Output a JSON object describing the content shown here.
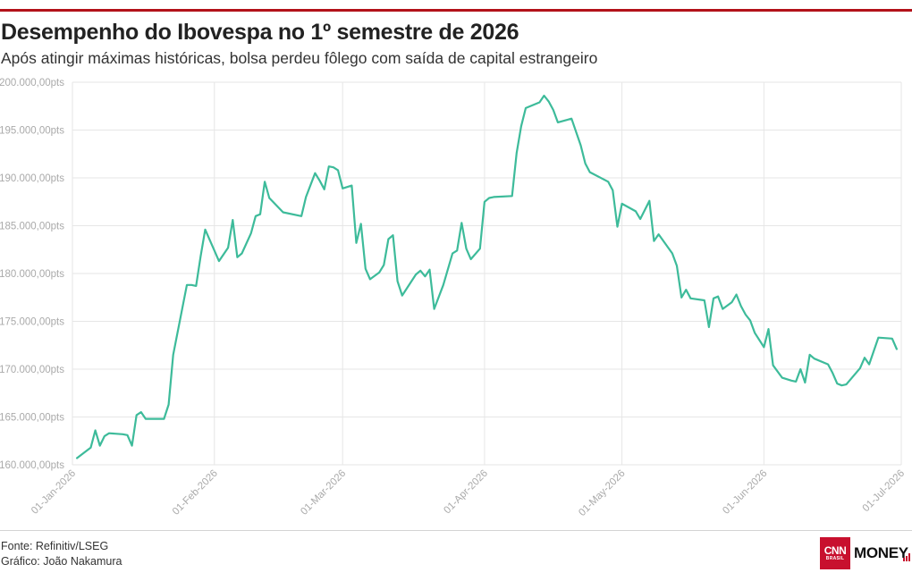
{
  "header": {
    "title": "Desempenho do Ibovespa no 1º semestre de 2026",
    "subtitle": "Após atingir máximas históricas, bolsa perdeu fôlego com saída de capital estrangeiro"
  },
  "footer": {
    "source": "Fonte: Refinitiv/LSEG",
    "credit": "Gráfico: João Nakamura"
  },
  "logo": {
    "mark": "CNN",
    "country": "BRASIL",
    "word": "MONEY"
  },
  "colors": {
    "accent": "#b3121a",
    "line": "#3dbb9a",
    "grid": "#e6e6e6",
    "tick_label": "#aaaaaa",
    "logo_red": "#c8102e"
  },
  "chart_data": {
    "type": "line",
    "title": "Desempenho do Ibovespa no 1º semestre de 2026",
    "xlabel": "",
    "ylabel": "",
    "ylim": [
      160000,
      200000
    ],
    "xlim": [
      "2026-01-01",
      "2026-07-01"
    ],
    "grid": true,
    "legend": "none",
    "y_tick_values": [
      160000,
      165000,
      170000,
      175000,
      180000,
      185000,
      190000,
      195000,
      200000
    ],
    "y_tick_labels": [
      "160.000,00pts",
      "165.000,00pts",
      "170.000,00pts",
      "175.000,00pts",
      "180.000,00pts",
      "185.000,00pts",
      "190.000,00pts",
      "195.000,00pts",
      "200.000,00pts"
    ],
    "x_tick_values": [
      "2026-01-01",
      "2026-02-01",
      "2026-03-01",
      "2026-04-01",
      "2026-05-01",
      "2026-06-01",
      "2026-07-01"
    ],
    "x_tick_labels": [
      "01-Jan-2026",
      "01-Feb-2026",
      "01-Mar-2026",
      "01-Apr-2026",
      "01-May-2026",
      "01-Jun-2026",
      "01-Jul-2026"
    ],
    "series": [
      {
        "points": [
          [
            "2026-01-02",
            160700
          ],
          [
            "2026-01-05",
            161800
          ],
          [
            "2026-01-06",
            163600
          ],
          [
            "2026-01-07",
            162000
          ],
          [
            "2026-01-08",
            163000
          ],
          [
            "2026-01-09",
            163300
          ],
          [
            "2026-01-12",
            163200
          ],
          [
            "2026-01-13",
            163100
          ],
          [
            "2026-01-14",
            162000
          ],
          [
            "2026-01-15",
            165200
          ],
          [
            "2026-01-16",
            165500
          ],
          [
            "2026-01-17",
            164800
          ],
          [
            "2026-01-20",
            164800
          ],
          [
            "2026-01-21",
            164800
          ],
          [
            "2026-01-22",
            166300
          ],
          [
            "2026-01-23",
            171500
          ],
          [
            "2026-01-26",
            178800
          ],
          [
            "2026-01-27",
            178800
          ],
          [
            "2026-01-28",
            178700
          ],
          [
            "2026-01-29",
            181800
          ],
          [
            "2026-01-30",
            184600
          ],
          [
            "2026-02-02",
            181300
          ],
          [
            "2026-02-04",
            182700
          ],
          [
            "2026-02-05",
            185600
          ],
          [
            "2026-02-06",
            181700
          ],
          [
            "2026-02-07",
            182100
          ],
          [
            "2026-02-09",
            184200
          ],
          [
            "2026-02-10",
            186000
          ],
          [
            "2026-02-11",
            186200
          ],
          [
            "2026-02-12",
            189600
          ],
          [
            "2026-02-13",
            187900
          ],
          [
            "2026-02-16",
            186400
          ],
          [
            "2026-02-20",
            186000
          ],
          [
            "2026-02-21",
            188000
          ],
          [
            "2026-02-23",
            190500
          ],
          [
            "2026-02-24",
            189700
          ],
          [
            "2026-02-25",
            188800
          ],
          [
            "2026-02-26",
            191200
          ],
          [
            "2026-02-27",
            191100
          ],
          [
            "2026-02-28",
            190800
          ],
          [
            "2026-03-01",
            188900
          ],
          [
            "2026-03-03",
            189200
          ],
          [
            "2026-03-04",
            183200
          ],
          [
            "2026-03-05",
            185200
          ],
          [
            "2026-03-06",
            180500
          ],
          [
            "2026-03-07",
            179400
          ],
          [
            "2026-03-09",
            180100
          ],
          [
            "2026-03-10",
            180900
          ],
          [
            "2026-03-11",
            183600
          ],
          [
            "2026-03-12",
            184000
          ],
          [
            "2026-03-13",
            179200
          ],
          [
            "2026-03-14",
            177700
          ],
          [
            "2026-03-17",
            179900
          ],
          [
            "2026-03-18",
            180300
          ],
          [
            "2026-03-19",
            179700
          ],
          [
            "2026-03-20",
            180400
          ],
          [
            "2026-03-21",
            176300
          ],
          [
            "2026-03-23",
            178800
          ],
          [
            "2026-03-25",
            182100
          ],
          [
            "2026-03-26",
            182400
          ],
          [
            "2026-03-27",
            185300
          ],
          [
            "2026-03-28",
            182600
          ],
          [
            "2026-03-29",
            181500
          ],
          [
            "2026-03-31",
            182600
          ],
          [
            "2026-04-01",
            187500
          ],
          [
            "2026-04-02",
            187900
          ],
          [
            "2026-04-03",
            188000
          ],
          [
            "2026-04-07",
            188100
          ],
          [
            "2026-04-08",
            192600
          ],
          [
            "2026-04-09",
            195400
          ],
          [
            "2026-04-10",
            197300
          ],
          [
            "2026-04-13",
            197900
          ],
          [
            "2026-04-14",
            198600
          ],
          [
            "2026-04-15",
            198000
          ],
          [
            "2026-04-16",
            197100
          ],
          [
            "2026-04-17",
            195800
          ],
          [
            "2026-04-20",
            196200
          ],
          [
            "2026-04-22",
            193400
          ],
          [
            "2026-04-23",
            191500
          ],
          [
            "2026-04-24",
            190600
          ],
          [
            "2026-04-28",
            189600
          ],
          [
            "2026-04-29",
            188700
          ],
          [
            "2026-04-30",
            184900
          ],
          [
            "2026-05-01",
            187300
          ],
          [
            "2026-05-04",
            186500
          ],
          [
            "2026-05-05",
            185700
          ],
          [
            "2026-05-07",
            187600
          ],
          [
            "2026-05-08",
            183400
          ],
          [
            "2026-05-09",
            184100
          ],
          [
            "2026-05-12",
            182100
          ],
          [
            "2026-05-13",
            180800
          ],
          [
            "2026-05-14",
            177500
          ],
          [
            "2026-05-15",
            178300
          ],
          [
            "2026-05-16",
            177400
          ],
          [
            "2026-05-19",
            177200
          ],
          [
            "2026-05-20",
            174400
          ],
          [
            "2026-05-21",
            177400
          ],
          [
            "2026-05-22",
            177600
          ],
          [
            "2026-05-23",
            176300
          ],
          [
            "2026-05-25",
            177000
          ],
          [
            "2026-05-26",
            177800
          ],
          [
            "2026-05-27",
            176600
          ],
          [
            "2026-05-28",
            175700
          ],
          [
            "2026-05-29",
            175100
          ],
          [
            "2026-05-30",
            173800
          ],
          [
            "2026-06-01",
            172300
          ],
          [
            "2026-06-02",
            174200
          ],
          [
            "2026-06-03",
            170400
          ],
          [
            "2026-06-05",
            169100
          ],
          [
            "2026-06-07",
            168800
          ],
          [
            "2026-06-08",
            168700
          ],
          [
            "2026-06-09",
            170000
          ],
          [
            "2026-06-10",
            168600
          ],
          [
            "2026-06-11",
            171500
          ],
          [
            "2026-06-12",
            171100
          ],
          [
            "2026-06-15",
            170500
          ],
          [
            "2026-06-16",
            169600
          ],
          [
            "2026-06-17",
            168500
          ],
          [
            "2026-06-18",
            168300
          ],
          [
            "2026-06-19",
            168400
          ],
          [
            "2026-06-22",
            170100
          ],
          [
            "2026-06-23",
            171200
          ],
          [
            "2026-06-24",
            170500
          ],
          [
            "2026-06-26",
            173300
          ],
          [
            "2026-06-29",
            173200
          ],
          [
            "2026-06-30",
            172100
          ]
        ]
      }
    ]
  }
}
